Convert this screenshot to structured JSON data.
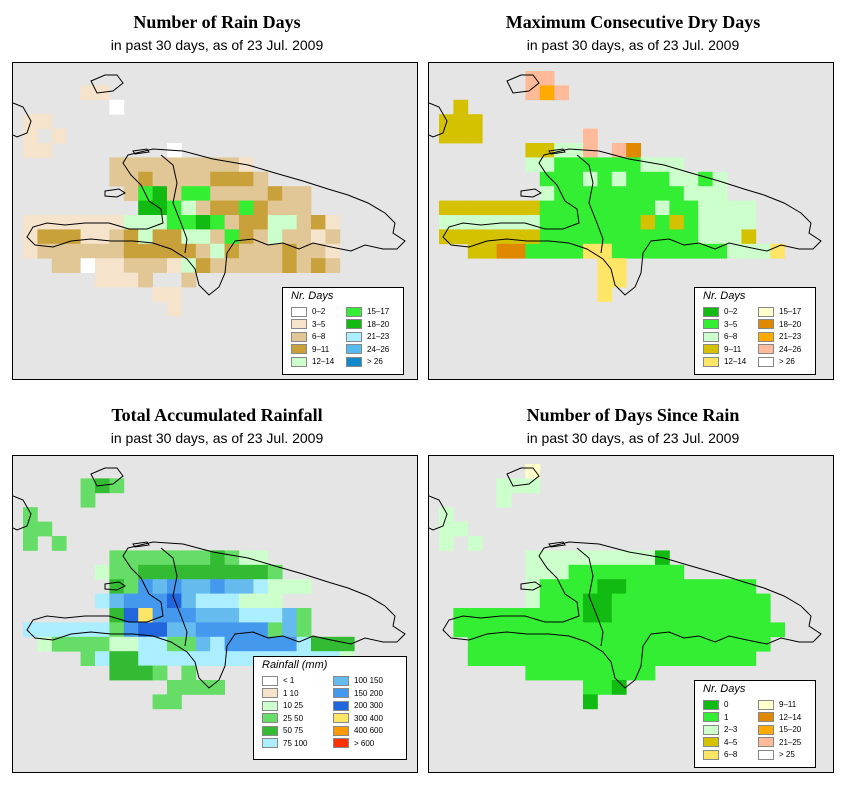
{
  "panels": [
    {
      "id": "rain-days",
      "title": "Number of Rain Days",
      "subtitle": "in past 30 days, as of  23 Jul. 2009",
      "legend": {
        "title": "Nr. Days",
        "items": [
          {
            "label": "0–2",
            "color": "#ffffff"
          },
          {
            "label": "3–5",
            "color": "#f5e3cc"
          },
          {
            "label": "6–8",
            "color": "#e0c795"
          },
          {
            "label": "9–11",
            "color": "#c9a13a"
          },
          {
            "label": "12–14",
            "color": "#ccffcc"
          },
          {
            "label": "15–17",
            "color": "#33ee33"
          },
          {
            "label": "18–20",
            "color": "#11bb11"
          },
          {
            "label": "21–23",
            "color": "#aaeeff"
          },
          {
            "label": "24–26",
            "color": "#55bbee"
          },
          {
            "label": "> 26",
            "color": "#1188cc"
          }
        ]
      },
      "palette": [
        "#e5e5e5",
        "#f5e3cc",
        "#e0c795",
        "#c9a13a",
        "#ccffcc",
        "#33ee33",
        "#11bb11",
        "#ffffff"
      ],
      "grid": [
        "...........................",
        "....11.....................",
        "......7....................",
        "11.........................",
        "1.1........................",
        "11........7................",
        "......2222222221...........",
        "......22322223332..........",
        ".......2562552222322.......",
        "........665423353222.......",
        "1111111444556523344231.....",
        "1333112343344253242212.....",
        "1222222333332432223221.....",
        "..22711222143222223232.....",
        ".....1112..2...............",
        ".........11................",
        "..........1................"
      ]
    },
    {
      "id": "dry-days",
      "title": "Maximum Consecutive Dry Days",
      "subtitle": "in past 30 days, as of  23 Jul. 2009",
      "legend": {
        "title": "Nr. Days",
        "items": [
          {
            "label": "0–2",
            "color": "#11bb11"
          },
          {
            "label": "3–5",
            "color": "#33ee33"
          },
          {
            "label": "6–8",
            "color": "#ccffcc"
          },
          {
            "label": "9–11",
            "color": "#d4c200"
          },
          {
            "label": "12–14",
            "color": "#ffe566"
          },
          {
            "label": "15–17",
            "color": "#ffffcc"
          },
          {
            "label": "18–20",
            "color": "#e08800"
          },
          {
            "label": "21–23",
            "color": "#ffaa00"
          },
          {
            "label": "24–26",
            "color": "#ffbb99"
          },
          {
            "label": "> 26",
            "color": "#ffffff"
          }
        ]
      },
      "palette": [
        "#e5e5e5",
        "#11bb11",
        "#33ee33",
        "#ccffcc",
        "#d4c200",
        "#ffe566",
        "#ffffcc",
        "#e08800",
        "#ffaa00",
        "#ffbb99",
        "#ffffff"
      ],
      "grid": [
        "......99...................",
        "......989..................",
        ".4..........................",
        "444.......................",
        "444.......9...............",
        "......44339.97.............",
        "......33222222333..........",
        ".......2223232223323.......",
        ".......3222222222333.......",
        "4444444222222223223333.....",
        "3333333222222242423333.....",
        "4444444222222222223334.....",
        "..4477222255222222223335...",
        "...........55..............",
        "...........55..............",
        "...........5..............."
      ]
    },
    {
      "id": "rainfall",
      "title": "Total Accumulated Rainfall",
      "subtitle": "in past 30 days, as of  23 Jul. 2009",
      "legend": {
        "title": "Rainfall (mm)",
        "items": [
          {
            "label": "< 1",
            "color": "#ffffff"
          },
          {
            "label": "1    10",
            "color": "#f5e3cc"
          },
          {
            "label": "10    25",
            "color": "#ccffcc"
          },
          {
            "label": "25    50",
            "color": "#66dd66"
          },
          {
            "label": "50    75",
            "color": "#33bb33"
          },
          {
            "label": "75   100",
            "color": "#aaeeff"
          },
          {
            "label": "100   150",
            "color": "#66bbee"
          },
          {
            "label": "150   200",
            "color": "#4499ee"
          },
          {
            "label": "200   300",
            "color": "#2266dd"
          },
          {
            "label": "300   400",
            "color": "#ffe566"
          },
          {
            "label": "400   600",
            "color": "#ff9900"
          },
          {
            "label": "> 600",
            "color": "#ff3300"
          }
        ]
      },
      "palette": [
        "#e5e5e5",
        "#ffffff",
        "#ccffcc",
        "#66dd66",
        "#33bb33",
        "#aaeeff",
        "#66bbee",
        "#4499ee",
        "#2266dd",
        "#ffe566"
      ],
      "grid": [
        "...........................",
        "....343....................",
        "....3......................",
        "3..........................",
        "33.........................",
        "3.3........................",
        "......33333334322..........",
        ".....2334444444443.........",
        "......43767667665222.......",
        ".....5677786555222.........",
        "......48977766655563.......",
        "55555537886677777363.......",
        ".2333322553365777775444....",
        "....3544555555555555552....",
        "......4443.3..........",
        "..........3333............",
        ".........33................"
      ]
    },
    {
      "id": "since-rain",
      "title": "Number of Days Since Rain",
      "subtitle": "in past 30 days, as of  23 Jul. 2009",
      "legend": {
        "title": "Nr. Days",
        "items": [
          {
            "label": "0",
            "color": "#11bb11"
          },
          {
            "label": "1",
            "color": "#33ee33"
          },
          {
            "label": "2–3",
            "color": "#ccffcc"
          },
          {
            "label": "4–5",
            "color": "#d4c200"
          },
          {
            "label": "6–8",
            "color": "#ffe566"
          },
          {
            "label": "9–11",
            "color": "#ffffcc"
          },
          {
            "label": "12–14",
            "color": "#e08800"
          },
          {
            "label": "15–20",
            "color": "#ffaa00"
          },
          {
            "label": "21–25",
            "color": "#ffbb99"
          },
          {
            "label": "> 25",
            "color": "#ffffff"
          }
        ]
      },
      "palette": [
        "#e5e5e5",
        "#11bb11",
        "#33ee33",
        "#ccffcc",
        "#ffffcc"
      ],
      "grid": [
        "......4....................",
        "....333....................",
        "....3......................",
        "3..........................",
        "33.........................",
        "3.3........................",
        "......3333333331...........",
        "......33322222222..........",
        "......3222211222222222.....",
        "......32221122222222222....",
        ".2222222221122222222222....",
        ".22222222222222222222222...",
        "..222222222222222222222....",
        "..22222222222222222222.....",
        "......222222222...........",
        "..........221..............",
        "..........1................"
      ]
    }
  ]
}
